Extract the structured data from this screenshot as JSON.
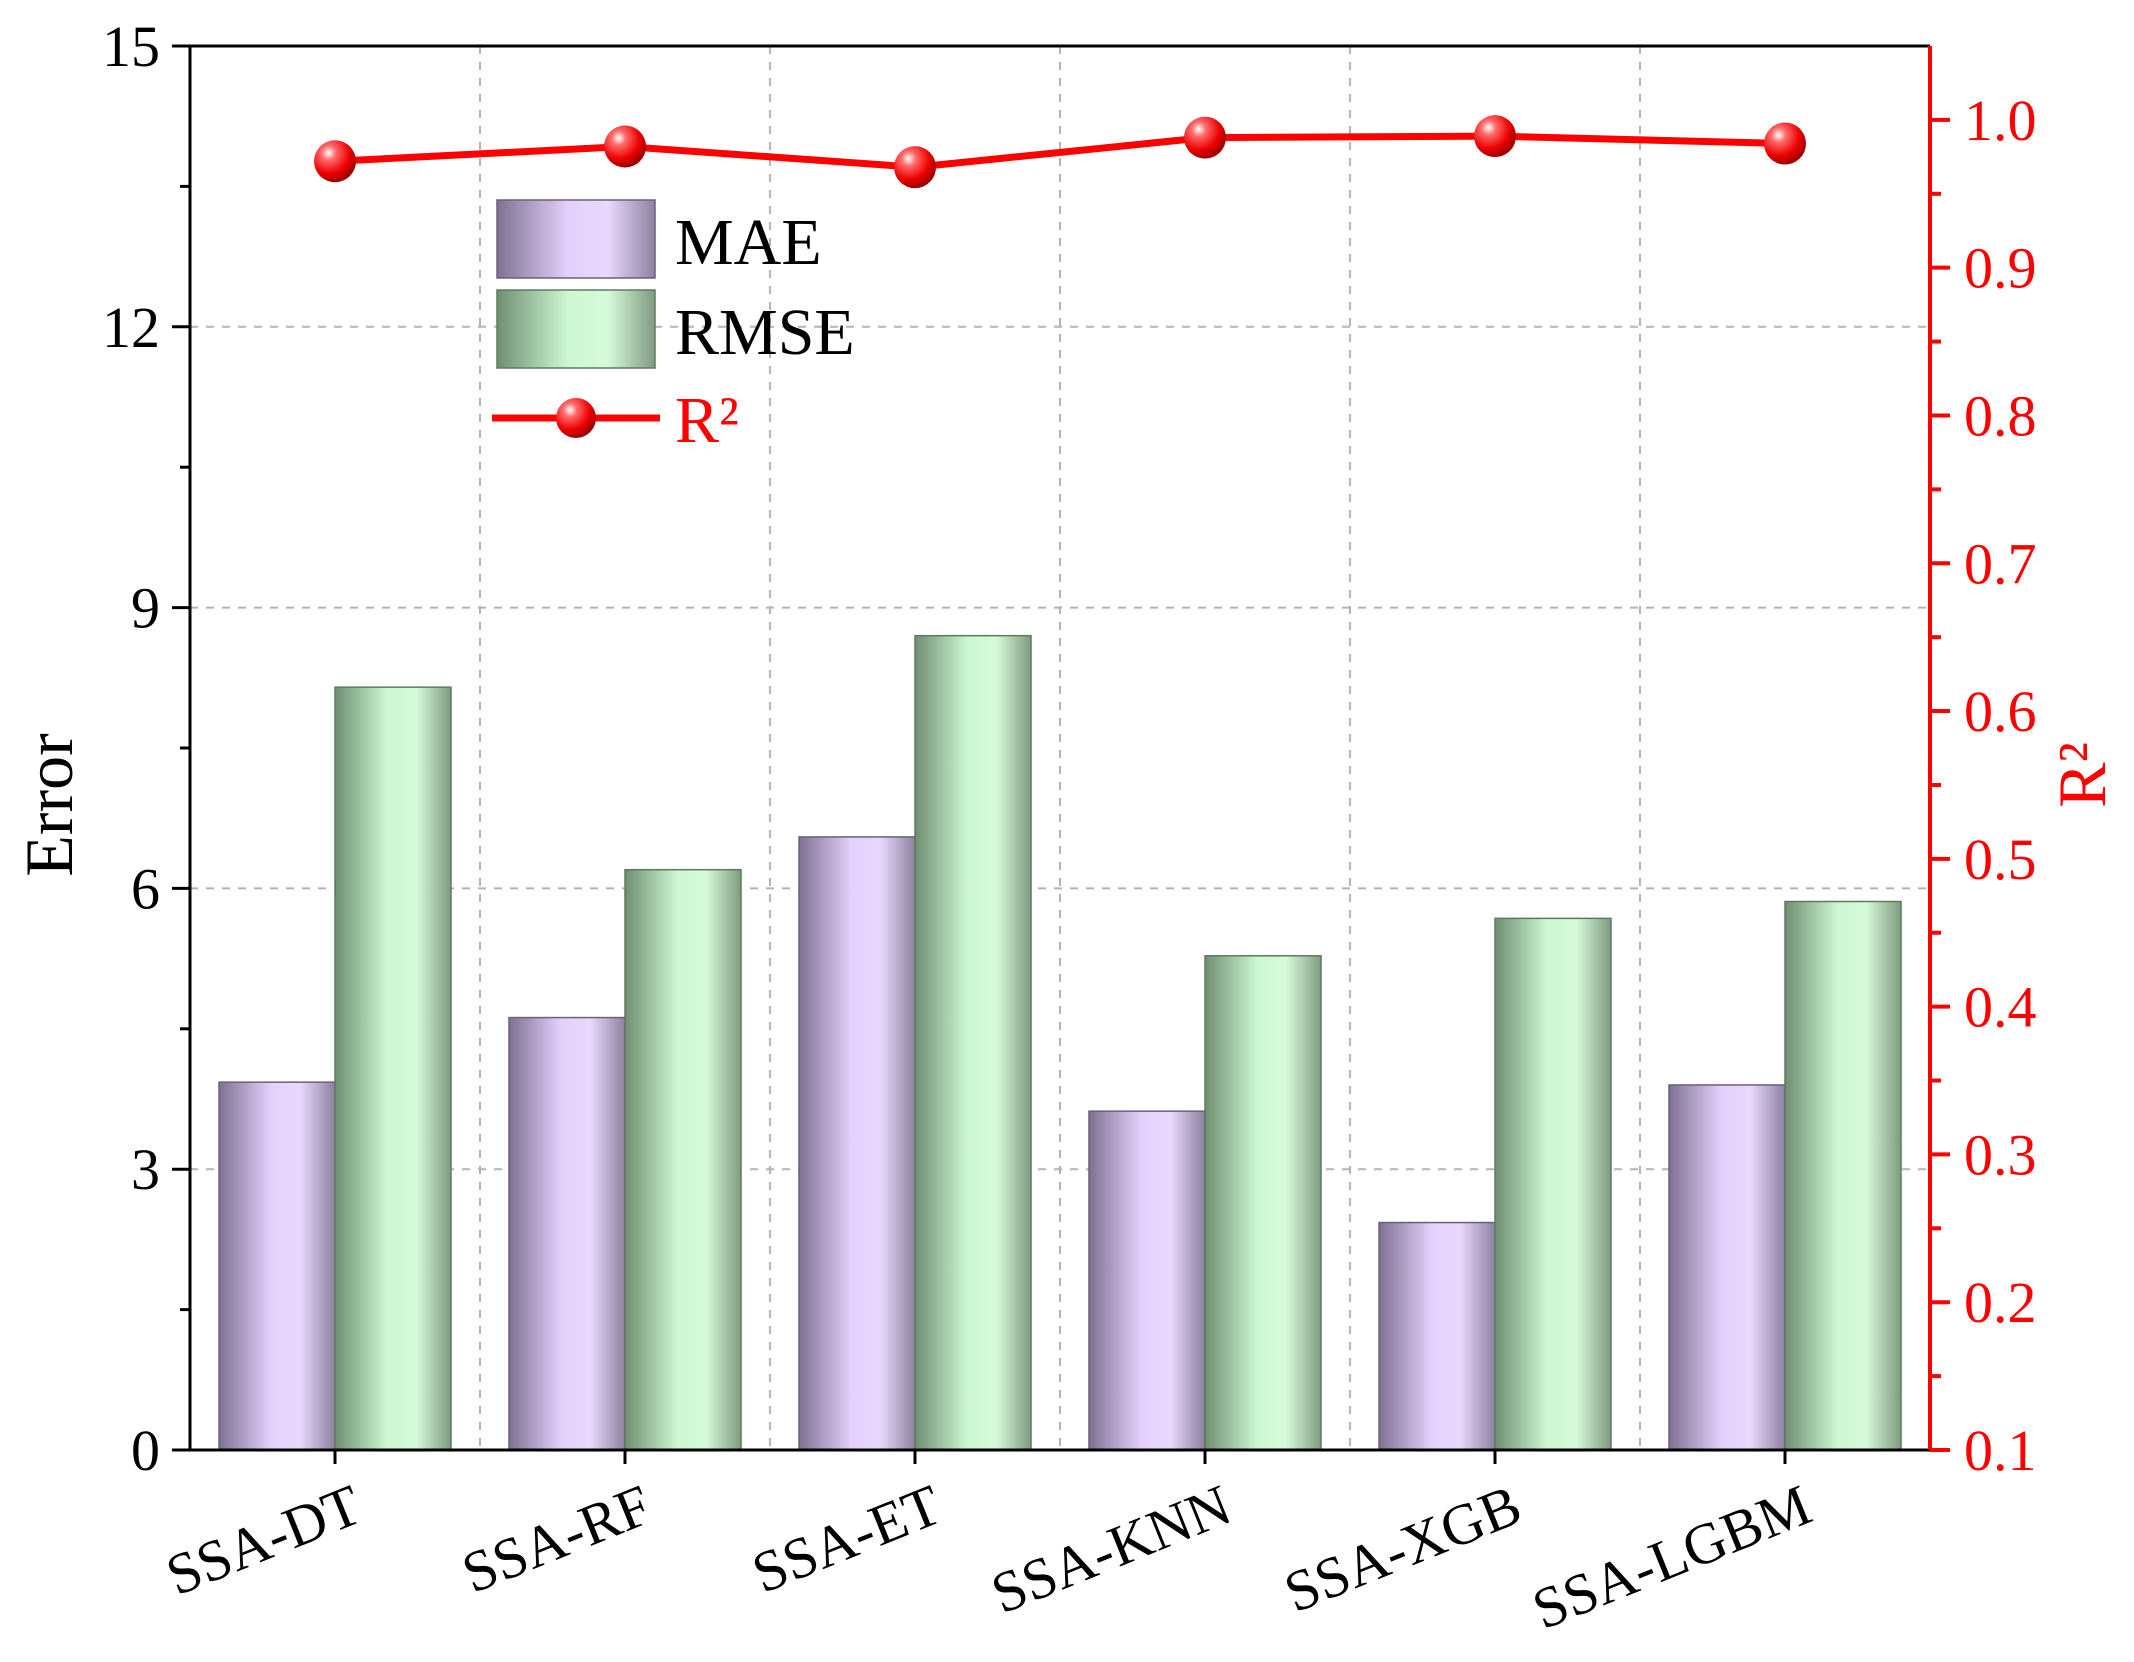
{
  "chart_data": {
    "type": "bar",
    "categories": [
      "SSA-DT",
      "SSA-RF",
      "SSA-ET",
      "SSA-KNN",
      "SSA-XGB",
      "SSA-LGBM"
    ],
    "series": [
      {
        "name": "MAE",
        "axis": "left",
        "type": "bar",
        "values": [
          3.93,
          4.62,
          6.55,
          3.62,
          2.43,
          3.9
        ]
      },
      {
        "name": "RMSE",
        "axis": "left",
        "type": "bar",
        "values": [
          8.15,
          6.2,
          8.7,
          5.28,
          5.68,
          5.86
        ]
      },
      {
        "name": "R²",
        "axis": "right",
        "type": "line",
        "values": [
          0.972,
          0.982,
          0.968,
          0.988,
          0.989,
          0.984
        ]
      }
    ],
    "ylabel": "Error",
    "ylabel_right": "R²",
    "ylim": [
      0,
      15
    ],
    "ylim_right": [
      0.1,
      1.05
    ],
    "yticks": [
      "0",
      "3",
      "6",
      "9",
      "12",
      "15"
    ],
    "yticks_right": [
      "0.1",
      "0.2",
      "0.3",
      "0.4",
      "0.5",
      "0.6",
      "0.7",
      "0.8",
      "0.9",
      "1.0"
    ],
    "grid": true,
    "legend_position": "top-left",
    "colors": {
      "mae_light": "#e4d0fb",
      "mae_dark": "#7e7192",
      "rmse_light": "#ccf8d0",
      "rmse_dark": "#6f8f72",
      "r2": "#ff0000",
      "axis": "#000000",
      "grid": "#b4b4b4"
    }
  }
}
